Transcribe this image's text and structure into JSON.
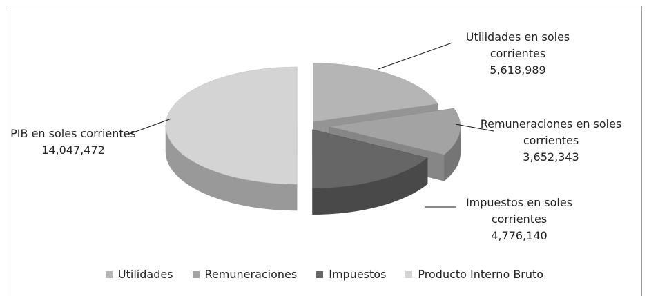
{
  "chart_data": {
    "type": "pie3d",
    "categories": [
      "Utilidades",
      "Remuneraciones",
      "Impuestos",
      "Producto Interno Bruto"
    ],
    "slice_labels": [
      "Utilidades en soles corrientes",
      "Remuneraciones en soles corrientes",
      "Impuestos en soles corrientes",
      "PIB en soles corrientes"
    ],
    "values": [
      5618989,
      3652343,
      4776140,
      14047472
    ],
    "value_labels": [
      "5,618,989",
      "3,652,343",
      "4,776,140",
      "14,047,472"
    ],
    "colors": [
      "#b5b5b5",
      "#a3a3a3",
      "#666666",
      "#d4d4d4"
    ],
    "legend": "bottom"
  }
}
